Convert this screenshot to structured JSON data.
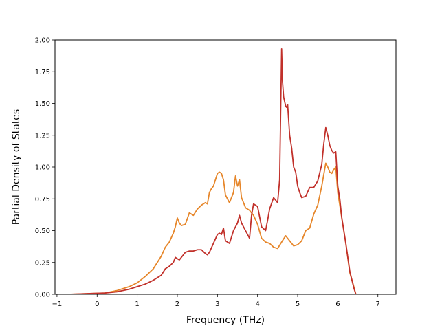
{
  "chart_data": {
    "type": "line",
    "title": "",
    "xlabel": "Frequency (THz)",
    "ylabel": "Partial Density of States",
    "xlim": [
      -1.05,
      7.45
    ],
    "ylim": [
      0,
      2.0
    ],
    "xticks": [
      -1,
      0,
      1,
      2,
      3,
      4,
      5,
      6,
      7
    ],
    "xtick_labels": [
      "−1",
      "0",
      "1",
      "2",
      "3",
      "4",
      "5",
      "6",
      "7"
    ],
    "yticks": [
      0,
      0.25,
      0.5,
      0.75,
      1.0,
      1.25,
      1.5,
      1.75,
      2.0
    ],
    "ytick_labels": [
      "0.00",
      "0.25",
      "0.50",
      "0.75",
      "1.00",
      "1.25",
      "1.50",
      "1.75",
      "2.00"
    ],
    "grid": false,
    "series": [
      {
        "color": "#e6862a",
        "x": [
          -0.7,
          0.2,
          0.5,
          0.8,
          1.0,
          1.2,
          1.4,
          1.6,
          1.7,
          1.8,
          1.9,
          1.95,
          2.0,
          2.05,
          2.1,
          2.2,
          2.3,
          2.4,
          2.5,
          2.6,
          2.7,
          2.75,
          2.8,
          2.85,
          2.9,
          2.95,
          3.0,
          3.05,
          3.1,
          3.15,
          3.2,
          3.3,
          3.4,
          3.45,
          3.5,
          3.55,
          3.6,
          3.7,
          3.8,
          3.9,
          4.0,
          4.1,
          4.2,
          4.3,
          4.4,
          4.5,
          4.6,
          4.7,
          4.8,
          4.9,
          5.0,
          5.1,
          5.2,
          5.3,
          5.4,
          5.5,
          5.6,
          5.7,
          5.75,
          5.8,
          5.85,
          5.9,
          5.95,
          6.0,
          6.1,
          6.2,
          6.3,
          6.4,
          6.45,
          7.0
        ],
        "y": [
          0,
          0.01,
          0.03,
          0.06,
          0.09,
          0.14,
          0.2,
          0.3,
          0.37,
          0.41,
          0.48,
          0.53,
          0.6,
          0.56,
          0.54,
          0.55,
          0.64,
          0.62,
          0.67,
          0.7,
          0.72,
          0.71,
          0.8,
          0.83,
          0.85,
          0.9,
          0.95,
          0.96,
          0.95,
          0.9,
          0.78,
          0.72,
          0.8,
          0.93,
          0.85,
          0.9,
          0.76,
          0.68,
          0.66,
          0.62,
          0.55,
          0.44,
          0.41,
          0.4,
          0.37,
          0.36,
          0.41,
          0.46,
          0.42,
          0.38,
          0.39,
          0.42,
          0.5,
          0.52,
          0.63,
          0.7,
          0.85,
          1.03,
          1.0,
          0.96,
          0.95,
          0.98,
          1.0,
          0.8,
          0.6,
          0.4,
          0.17,
          0.06,
          0.0,
          0
        ]
      },
      {
        "color": "#c1302a",
        "x": [
          -0.7,
          0.2,
          0.5,
          0.8,
          1.0,
          1.2,
          1.4,
          1.6,
          1.7,
          1.8,
          1.9,
          1.95,
          2.0,
          2.05,
          2.2,
          2.3,
          2.4,
          2.5,
          2.6,
          2.7,
          2.75,
          2.8,
          2.9,
          3.0,
          3.05,
          3.1,
          3.15,
          3.2,
          3.3,
          3.4,
          3.45,
          3.5,
          3.55,
          3.6,
          3.7,
          3.8,
          3.85,
          3.9,
          4.0,
          4.1,
          4.2,
          4.25,
          4.3,
          4.4,
          4.5,
          4.55,
          4.6,
          4.62,
          4.65,
          4.7,
          4.72,
          4.75,
          4.8,
          4.85,
          4.9,
          4.95,
          5.0,
          5.05,
          5.1,
          5.2,
          5.3,
          5.4,
          5.5,
          5.6,
          5.65,
          5.7,
          5.75,
          5.8,
          5.85,
          5.9,
          5.95,
          6.0,
          6.05,
          6.1,
          6.2,
          6.3,
          6.4,
          6.45,
          7.0
        ],
        "y": [
          0,
          0.01,
          0.02,
          0.04,
          0.06,
          0.08,
          0.11,
          0.15,
          0.2,
          0.22,
          0.25,
          0.29,
          0.28,
          0.27,
          0.33,
          0.34,
          0.34,
          0.35,
          0.35,
          0.32,
          0.31,
          0.33,
          0.4,
          0.47,
          0.48,
          0.47,
          0.52,
          0.42,
          0.4,
          0.5,
          0.53,
          0.56,
          0.62,
          0.56,
          0.5,
          0.44,
          0.62,
          0.71,
          0.69,
          0.53,
          0.5,
          0.58,
          0.67,
          0.76,
          0.72,
          0.9,
          1.93,
          1.68,
          1.55,
          1.48,
          1.47,
          1.49,
          1.25,
          1.15,
          1.0,
          0.96,
          0.85,
          0.8,
          0.76,
          0.77,
          0.84,
          0.84,
          0.89,
          1.02,
          1.18,
          1.31,
          1.25,
          1.17,
          1.13,
          1.11,
          1.12,
          0.85,
          0.75,
          0.6,
          0.4,
          0.18,
          0.05,
          0.0,
          0
        ]
      }
    ]
  }
}
